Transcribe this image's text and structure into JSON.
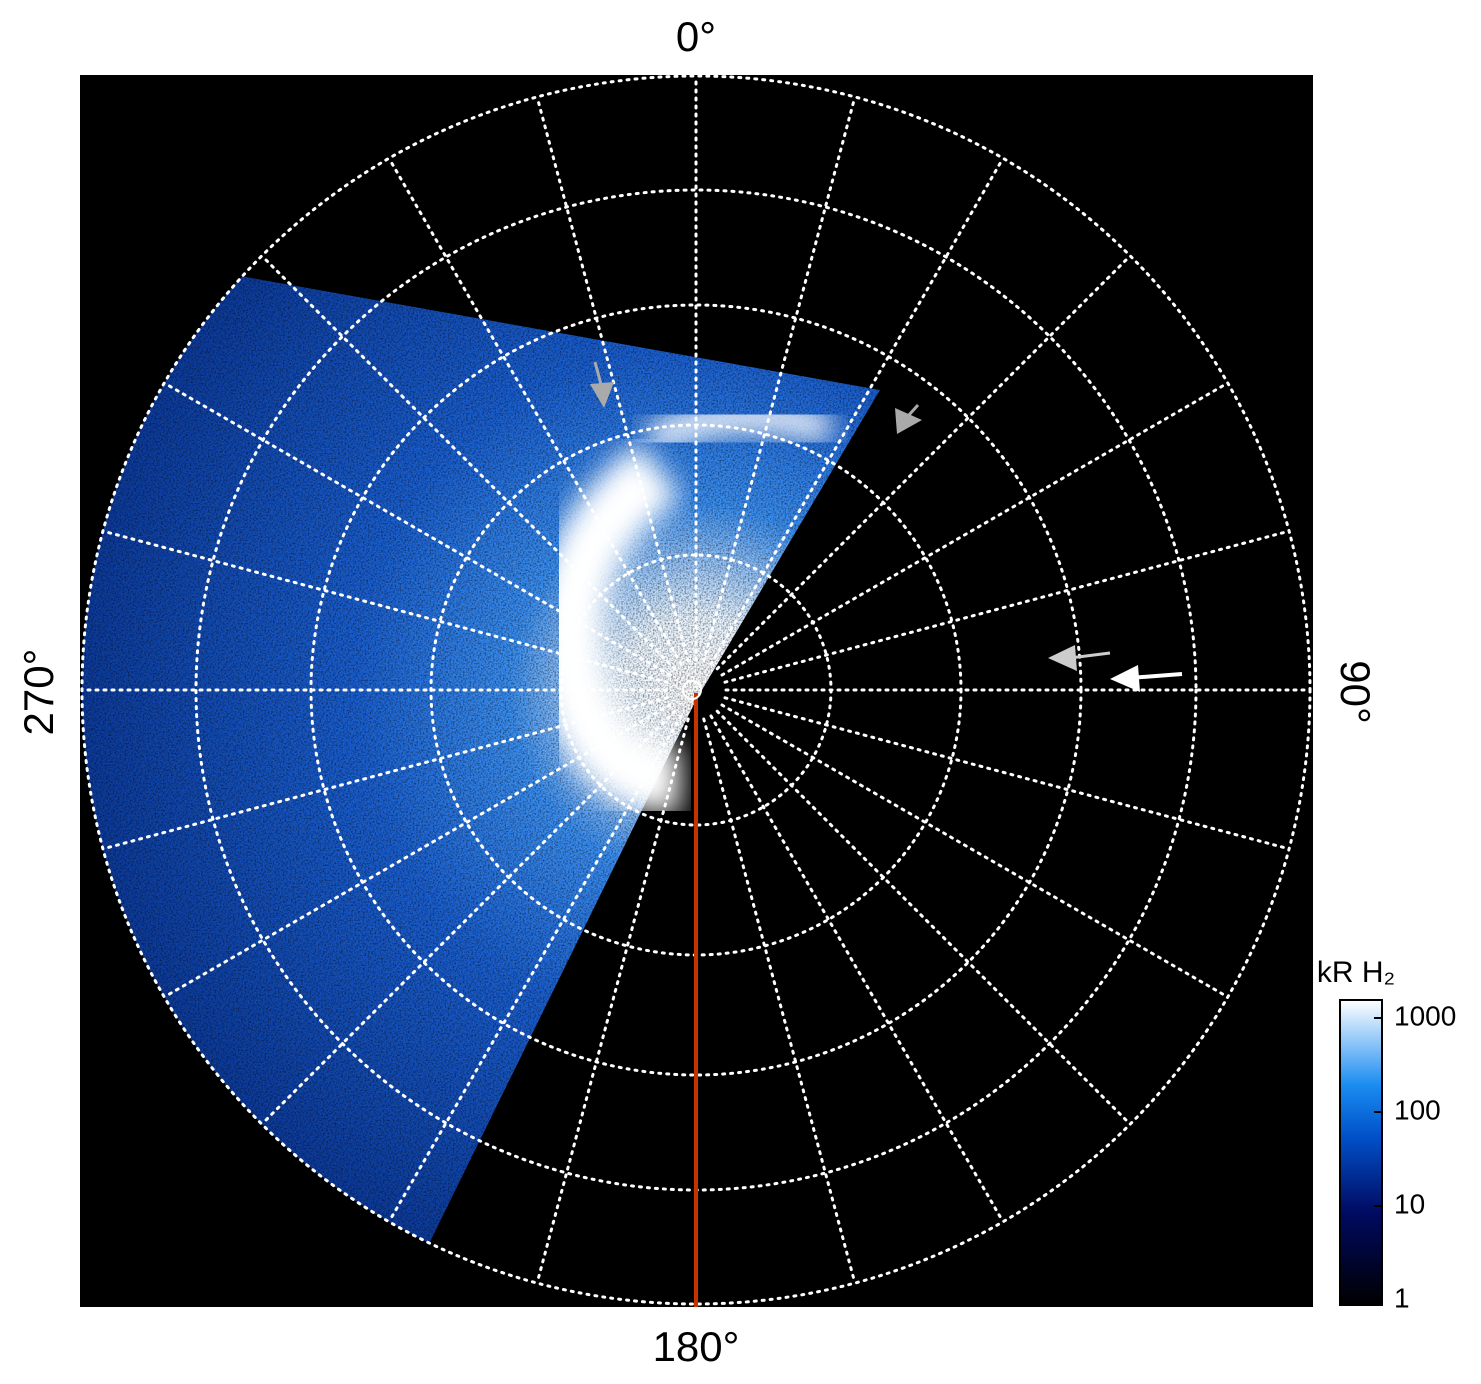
{
  "labels": {
    "top": "0°",
    "right": "90°",
    "bottom": "180°",
    "left": "270°"
  },
  "colorbar": {
    "title": "kR H₂",
    "ticks": [
      1,
      10,
      100,
      1000
    ]
  }
}
